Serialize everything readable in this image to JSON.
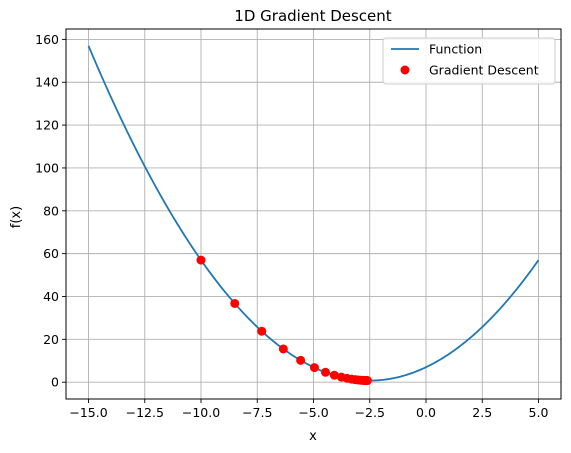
{
  "chart_data": {
    "type": "line",
    "title": "1D Gradient Descent",
    "xlabel": "x",
    "ylabel": "f(x)",
    "xlim": [
      -16,
      6
    ],
    "ylim": [
      -7.85,
      164.85
    ],
    "x_ticks": [
      -15.0,
      -12.5,
      -10.0,
      -7.5,
      -5.0,
      -2.5,
      0.0,
      2.5,
      5.0
    ],
    "x_tick_labels": [
      "−15.0",
      "−12.5",
      "−10.0",
      "−7.5",
      "−5.0",
      "−2.5",
      "0.0",
      "2.5",
      "5.0"
    ],
    "y_ticks": [
      0,
      20,
      40,
      60,
      80,
      100,
      120,
      140,
      160
    ],
    "y_tick_labels": [
      "0",
      "20",
      "40",
      "60",
      "80",
      "100",
      "120",
      "140",
      "160"
    ],
    "grid": true,
    "legend_position": "top-right",
    "function": {
      "name": "Function",
      "color": "#1f77b4",
      "formula": "x^2 + 5x + 7",
      "x_range": [
        -15,
        5
      ]
    },
    "series": [
      {
        "name": "Gradient Descent",
        "color": "#ff0000",
        "x": [
          -10.0,
          -8.5,
          -7.3,
          -6.34,
          -5.572,
          -4.958,
          -4.466,
          -4.073,
          -3.758,
          -3.507,
          -3.305,
          -3.144,
          -3.015,
          -2.912,
          -2.83,
          -2.764,
          -2.711,
          -2.669,
          -2.635,
          -2.608
        ],
        "y": [
          57.0,
          36.75,
          23.79,
          15.5,
          10.19,
          6.8,
          4.63,
          3.24,
          2.35,
          1.78,
          1.41,
          1.18,
          1.03,
          0.93,
          0.86,
          0.83,
          0.8,
          0.78,
          0.77,
          0.76
        ]
      }
    ]
  }
}
